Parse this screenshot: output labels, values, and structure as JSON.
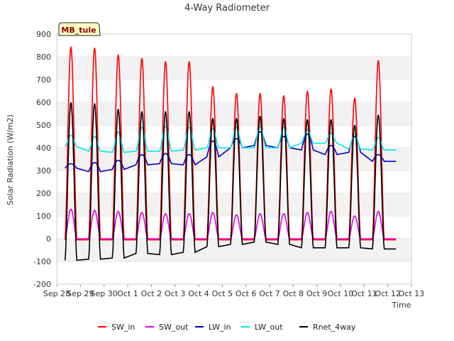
{
  "chart_data": {
    "type": "line",
    "title": "4-Way Radiometer",
    "xlabel": "Time",
    "ylabel": "Solar Radiation (W/m2)",
    "ylim": [
      -200,
      900
    ],
    "xlim": [
      0,
      15
    ],
    "site_label": "MB_tule",
    "y_ticks": [
      -200,
      -100,
      0,
      100,
      200,
      300,
      400,
      500,
      600,
      700,
      800,
      900
    ],
    "x_ticks": [
      {
        "v": 0,
        "label": "Sep 28"
      },
      {
        "v": 1,
        "label": "Sep 29"
      },
      {
        "v": 2,
        "label": "Sep 30"
      },
      {
        "v": 3,
        "label": "Oct 1"
      },
      {
        "v": 4,
        "label": "Oct 2"
      },
      {
        "v": 5,
        "label": "Oct 3"
      },
      {
        "v": 6,
        "label": "Oct 4"
      },
      {
        "v": 7,
        "label": "Oct 5"
      },
      {
        "v": 8,
        "label": "Oct 6"
      },
      {
        "v": 9,
        "label": "Oct 7"
      },
      {
        "v": 10,
        "label": "Oct 8"
      },
      {
        "v": 11,
        "label": "Oct 9"
      },
      {
        "v": 12,
        "label": "Oct 10"
      },
      {
        "v": 13,
        "label": "Oct 11"
      },
      {
        "v": 14,
        "label": "Oct 12"
      },
      {
        "v": 15,
        "label": "Oct 13"
      }
    ],
    "day_start": 0.35,
    "noon_peaks": [
      0.85,
      1.85,
      2.85,
      3.85,
      4.85,
      5.85,
      6.85,
      7.85,
      8.85,
      9.85,
      10.85,
      11.85,
      12.85,
      13.85
    ],
    "series": [
      {
        "name": "SW_in",
        "color": "#ff0000",
        "night": [
          -5,
          -5,
          -5,
          -5,
          -5,
          -5,
          -5,
          -5,
          -5,
          -5,
          -5,
          -5,
          -5,
          -5
        ],
        "peak": [
          845,
          840,
          810,
          795,
          780,
          780,
          670,
          640,
          640,
          630,
          650,
          660,
          620,
          785
        ]
      },
      {
        "name": "SW_out",
        "color": "#e000e0",
        "night": [
          0,
          0,
          0,
          0,
          0,
          0,
          0,
          0,
          0,
          0,
          0,
          0,
          0,
          0
        ],
        "peak": [
          130,
          125,
          120,
          115,
          110,
          110,
          115,
          105,
          110,
          110,
          115,
          120,
          100,
          120
        ]
      },
      {
        "name": "LW_in",
        "color": "#0000cc",
        "night": [
          310,
          295,
          305,
          325,
          330,
          325,
          360,
          400,
          410,
          400,
          390,
          370,
          380,
          340
        ],
        "peak": [
          330,
          335,
          345,
          370,
          375,
          370,
          430,
          440,
          470,
          450,
          460,
          410,
          450,
          370
        ]
      },
      {
        "name": "LW_out",
        "color": "#00e8e8",
        "night": [
          405,
          385,
          380,
          385,
          385,
          390,
          400,
          400,
          400,
          400,
          420,
          420,
          395,
          390
        ],
        "peak": [
          455,
          450,
          470,
          490,
          495,
          490,
          485,
          490,
          495,
          490,
          480,
          465,
          460,
          445
        ]
      },
      {
        "name": "Rnet_4way",
        "color": "#000000",
        "night": [
          -95,
          -90,
          -85,
          -65,
          -70,
          -60,
          -35,
          -25,
          -15,
          -25,
          -40,
          -40,
          -40,
          -45
        ],
        "peak": [
          600,
          595,
          570,
          560,
          560,
          560,
          530,
          530,
          540,
          530,
          525,
          525,
          500,
          545
        ]
      }
    ]
  }
}
